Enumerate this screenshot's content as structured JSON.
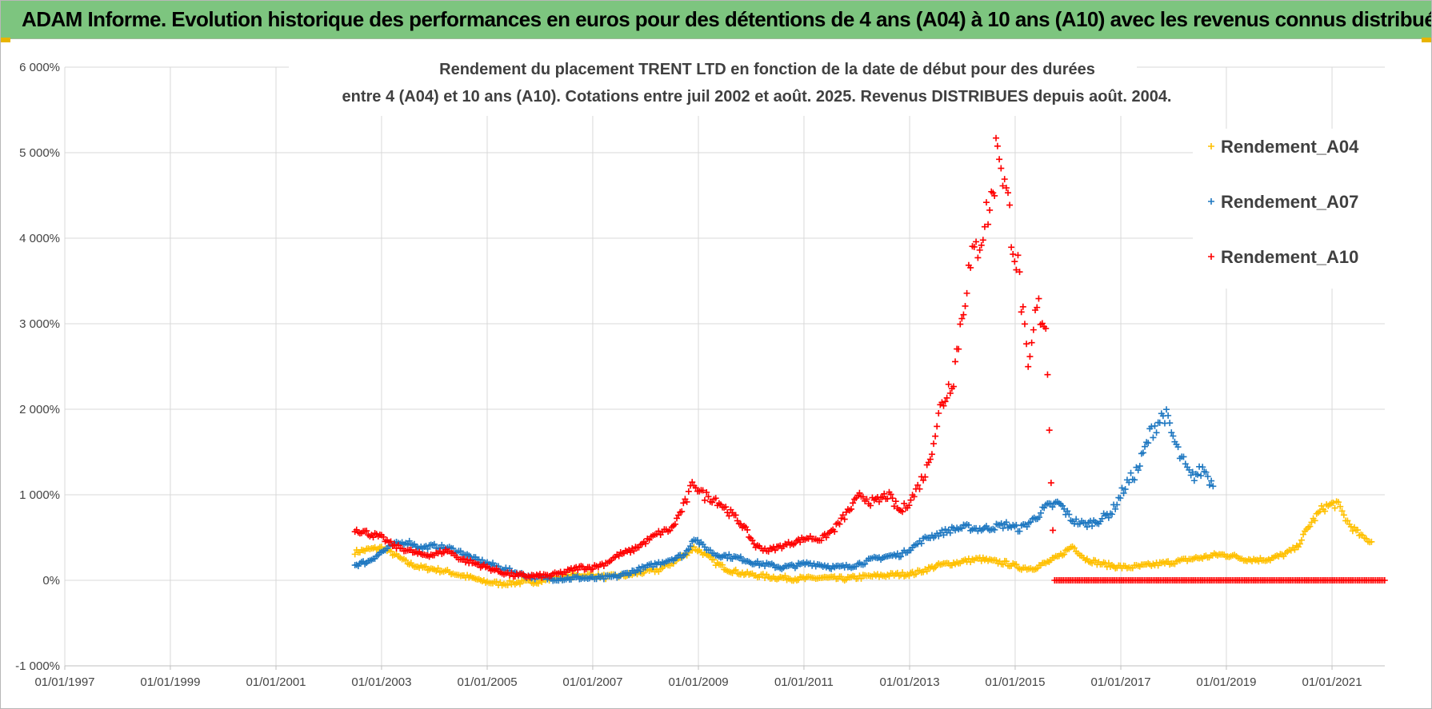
{
  "banner": {
    "text": "ADAM Informe. Evolution historique des performances en euros pour des détentions de 4 ans (A04) à 10 ans (A10) avec les revenus connus distribués"
  },
  "chart_data": {
    "type": "scatter",
    "title_lines": [
      "Rendement du placement TRENT LTD en fonction de la date de début pour des durées",
      "entre 4 (A04) et 10 ans (A10). Cotations entre juil 2002 et août. 2025. Revenus DISTRIBUES depuis août. 2004."
    ],
    "x_axis": {
      "type": "date",
      "range": [
        "1997-01-01",
        "2022-01-01"
      ],
      "tick_labels": [
        "01/01/1997",
        "01/01/1999",
        "01/01/2001",
        "01/01/2003",
        "01/01/2005",
        "01/01/2007",
        "01/01/2009",
        "01/01/2011",
        "01/01/2013",
        "01/01/2015",
        "01/01/2017",
        "01/01/2019",
        "01/01/2021"
      ]
    },
    "y_axis": {
      "unit": "%",
      "range": [
        -1000,
        6000
      ],
      "tick_values": [
        -1000,
        0,
        1000,
        2000,
        3000,
        4000,
        5000,
        6000
      ],
      "tick_labels": [
        "-1 000%",
        "0%",
        "1 000%",
        "2 000%",
        "3 000%",
        "4 000%",
        "5 000%",
        "6 000%"
      ]
    },
    "grid": true,
    "legend_position": "right",
    "marker": "plus",
    "series": [
      {
        "name": "Rendement_A04",
        "color": "#ffc000",
        "points": [
          [
            "2002-07-01",
            330
          ],
          [
            "2002-10-01",
            360
          ],
          [
            "2003-01-01",
            380
          ],
          [
            "2003-04-01",
            300
          ],
          [
            "2003-07-01",
            200
          ],
          [
            "2003-10-01",
            150
          ],
          [
            "2004-01-01",
            130
          ],
          [
            "2004-04-01",
            100
          ],
          [
            "2004-07-01",
            60
          ],
          [
            "2004-10-01",
            20
          ],
          [
            "2005-01-01",
            -20
          ],
          [
            "2005-04-01",
            -40
          ],
          [
            "2005-07-01",
            -30
          ],
          [
            "2005-10-01",
            -20
          ],
          [
            "2006-01-01",
            -10
          ],
          [
            "2006-04-01",
            20
          ],
          [
            "2006-07-01",
            40
          ],
          [
            "2006-10-01",
            60
          ],
          [
            "2007-01-01",
            60
          ],
          [
            "2007-04-01",
            40
          ],
          [
            "2007-07-01",
            50
          ],
          [
            "2007-10-01",
            70
          ],
          [
            "2008-01-01",
            100
          ],
          [
            "2008-04-01",
            120
          ],
          [
            "2008-07-01",
            200
          ],
          [
            "2008-10-01",
            300
          ],
          [
            "2008-12-01",
            380
          ],
          [
            "2009-02-01",
            320
          ],
          [
            "2009-05-01",
            200
          ],
          [
            "2009-08-01",
            120
          ],
          [
            "2009-11-01",
            80
          ],
          [
            "2010-02-01",
            60
          ],
          [
            "2010-05-01",
            40
          ],
          [
            "2010-08-01",
            30
          ],
          [
            "2010-11-01",
            20
          ],
          [
            "2011-02-01",
            20
          ],
          [
            "2011-05-01",
            30
          ],
          [
            "2011-08-01",
            20
          ],
          [
            "2011-11-01",
            20
          ],
          [
            "2012-02-01",
            40
          ],
          [
            "2012-05-01",
            50
          ],
          [
            "2012-08-01",
            60
          ],
          [
            "2012-11-01",
            70
          ],
          [
            "2013-02-01",
            80
          ],
          [
            "2013-05-01",
            130
          ],
          [
            "2013-08-01",
            180
          ],
          [
            "2013-11-01",
            200
          ],
          [
            "2014-02-01",
            230
          ],
          [
            "2014-05-01",
            250
          ],
          [
            "2014-08-01",
            220
          ],
          [
            "2014-11-01",
            200
          ],
          [
            "2015-02-01",
            150
          ],
          [
            "2015-05-01",
            140
          ],
          [
            "2015-08-01",
            200
          ],
          [
            "2015-11-01",
            280
          ],
          [
            "2016-02-01",
            400
          ],
          [
            "2016-05-01",
            250
          ],
          [
            "2016-08-01",
            200
          ],
          [
            "2016-11-01",
            170
          ],
          [
            "2017-02-01",
            150
          ],
          [
            "2017-05-01",
            160
          ],
          [
            "2017-08-01",
            180
          ],
          [
            "2017-11-01",
            200
          ],
          [
            "2018-02-01",
            220
          ],
          [
            "2018-05-01",
            250
          ],
          [
            "2018-08-01",
            270
          ],
          [
            "2018-11-01",
            300
          ],
          [
            "2019-02-01",
            290
          ],
          [
            "2019-05-01",
            250
          ],
          [
            "2019-08-01",
            240
          ],
          [
            "2019-11-01",
            250
          ],
          [
            "2020-02-01",
            300
          ],
          [
            "2020-05-01",
            380
          ],
          [
            "2020-08-01",
            650
          ],
          [
            "2020-11-01",
            850
          ],
          [
            "2021-02-01",
            900
          ],
          [
            "2021-05-01",
            650
          ],
          [
            "2021-08-01",
            500
          ],
          [
            "2021-10-01",
            450
          ]
        ]
      },
      {
        "name": "Rendement_A07",
        "color": "#1f78c1",
        "points": [
          [
            "2002-07-01",
            180
          ],
          [
            "2002-10-01",
            220
          ],
          [
            "2003-01-01",
            330
          ],
          [
            "2003-04-01",
            420
          ],
          [
            "2003-07-01",
            450
          ],
          [
            "2003-10-01",
            380
          ],
          [
            "2004-01-01",
            400
          ],
          [
            "2004-04-01",
            380
          ],
          [
            "2004-07-01",
            330
          ],
          [
            "2004-10-01",
            250
          ],
          [
            "2005-01-01",
            200
          ],
          [
            "2005-04-01",
            150
          ],
          [
            "2005-07-01",
            100
          ],
          [
            "2005-10-01",
            50
          ],
          [
            "2006-01-01",
            30
          ],
          [
            "2006-04-01",
            20
          ],
          [
            "2006-07-01",
            20
          ],
          [
            "2006-10-01",
            30
          ],
          [
            "2007-01-01",
            20
          ],
          [
            "2007-04-01",
            30
          ],
          [
            "2007-07-01",
            50
          ],
          [
            "2007-10-01",
            100
          ],
          [
            "2008-01-01",
            150
          ],
          [
            "2008-04-01",
            200
          ],
          [
            "2008-07-01",
            250
          ],
          [
            "2008-10-01",
            300
          ],
          [
            "2008-12-01",
            500
          ],
          [
            "2009-02-01",
            400
          ],
          [
            "2009-05-01",
            300
          ],
          [
            "2009-08-01",
            280
          ],
          [
            "2009-11-01",
            250
          ],
          [
            "2010-02-01",
            200
          ],
          [
            "2010-05-01",
            180
          ],
          [
            "2010-08-01",
            150
          ],
          [
            "2010-11-01",
            170
          ],
          [
            "2011-02-01",
            200
          ],
          [
            "2011-05-01",
            180
          ],
          [
            "2011-08-01",
            150
          ],
          [
            "2011-11-01",
            160
          ],
          [
            "2012-02-01",
            200
          ],
          [
            "2012-05-01",
            250
          ],
          [
            "2012-08-01",
            280
          ],
          [
            "2012-11-01",
            300
          ],
          [
            "2013-02-01",
            400
          ],
          [
            "2013-05-01",
            500
          ],
          [
            "2013-08-01",
            550
          ],
          [
            "2013-11-01",
            600
          ],
          [
            "2014-02-01",
            620
          ],
          [
            "2014-05-01",
            600
          ],
          [
            "2014-08-01",
            620
          ],
          [
            "2014-11-01",
            650
          ],
          [
            "2015-02-01",
            600
          ],
          [
            "2015-05-01",
            700
          ],
          [
            "2015-08-01",
            850
          ],
          [
            "2015-11-01",
            900
          ],
          [
            "2016-02-01",
            700
          ],
          [
            "2016-05-01",
            650
          ],
          [
            "2016-08-01",
            700
          ],
          [
            "2016-11-01",
            800
          ],
          [
            "2017-02-01",
            1100
          ],
          [
            "2017-05-01",
            1300
          ],
          [
            "2017-08-01",
            1750
          ],
          [
            "2017-11-01",
            1950
          ],
          [
            "2018-02-01",
            1500
          ],
          [
            "2018-05-01",
            1200
          ],
          [
            "2018-08-01",
            1300
          ],
          [
            "2018-10-01",
            1100
          ]
        ]
      },
      {
        "name": "Rendement_A10",
        "color": "#ff0000",
        "points": [
          [
            "2002-07-01",
            600
          ],
          [
            "2002-10-01",
            550
          ],
          [
            "2003-01-01",
            500
          ],
          [
            "2003-04-01",
            400
          ],
          [
            "2003-07-01",
            350
          ],
          [
            "2003-10-01",
            300
          ],
          [
            "2004-01-01",
            300
          ],
          [
            "2004-04-01",
            350
          ],
          [
            "2004-07-01",
            250
          ],
          [
            "2004-10-01",
            200
          ],
          [
            "2005-01-01",
            150
          ],
          [
            "2005-04-01",
            100
          ],
          [
            "2005-07-01",
            60
          ],
          [
            "2005-10-01",
            50
          ],
          [
            "2006-01-01",
            50
          ],
          [
            "2006-04-01",
            60
          ],
          [
            "2006-07-01",
            100
          ],
          [
            "2006-10-01",
            150
          ],
          [
            "2007-01-01",
            150
          ],
          [
            "2007-04-01",
            200
          ],
          [
            "2007-07-01",
            300
          ],
          [
            "2007-10-01",
            350
          ],
          [
            "2008-01-01",
            450
          ],
          [
            "2008-04-01",
            550
          ],
          [
            "2008-07-01",
            600
          ],
          [
            "2008-10-01",
            900
          ],
          [
            "2008-12-01",
            1150
          ],
          [
            "2009-02-01",
            1000
          ],
          [
            "2009-05-01",
            950
          ],
          [
            "2009-08-01",
            800
          ],
          [
            "2009-11-01",
            650
          ],
          [
            "2010-02-01",
            400
          ],
          [
            "2010-05-01",
            350
          ],
          [
            "2010-08-01",
            400
          ],
          [
            "2010-11-01",
            450
          ],
          [
            "2011-02-01",
            500
          ],
          [
            "2011-05-01",
            480
          ],
          [
            "2011-08-01",
            600
          ],
          [
            "2011-11-01",
            800
          ],
          [
            "2012-02-01",
            1000
          ],
          [
            "2012-05-01",
            900
          ],
          [
            "2012-08-01",
            1000
          ],
          [
            "2012-11-01",
            800
          ],
          [
            "2013-02-01",
            1000
          ],
          [
            "2013-05-01",
            1300
          ],
          [
            "2013-08-01",
            2000
          ],
          [
            "2013-11-01",
            2400
          ],
          [
            "2014-02-01",
            3500
          ],
          [
            "2014-05-01",
            4000
          ],
          [
            "2014-08-01",
            4500
          ],
          [
            "2014-09-01",
            5200
          ],
          [
            "2014-11-01",
            4500
          ],
          [
            "2015-02-01",
            3500
          ],
          [
            "2015-04-01",
            2400
          ],
          [
            "2015-06-01",
            3200
          ],
          [
            "2015-08-01",
            3000
          ],
          [
            "2015-10-01",
            0
          ],
          [
            "2016-06-01",
            0
          ],
          [
            "2017-06-01",
            0
          ],
          [
            "2018-06-01",
            0
          ],
          [
            "2019-06-01",
            0
          ],
          [
            "2020-06-01",
            0
          ],
          [
            "2021-06-01",
            0
          ],
          [
            "2021-12-31",
            0
          ]
        ]
      }
    ]
  }
}
